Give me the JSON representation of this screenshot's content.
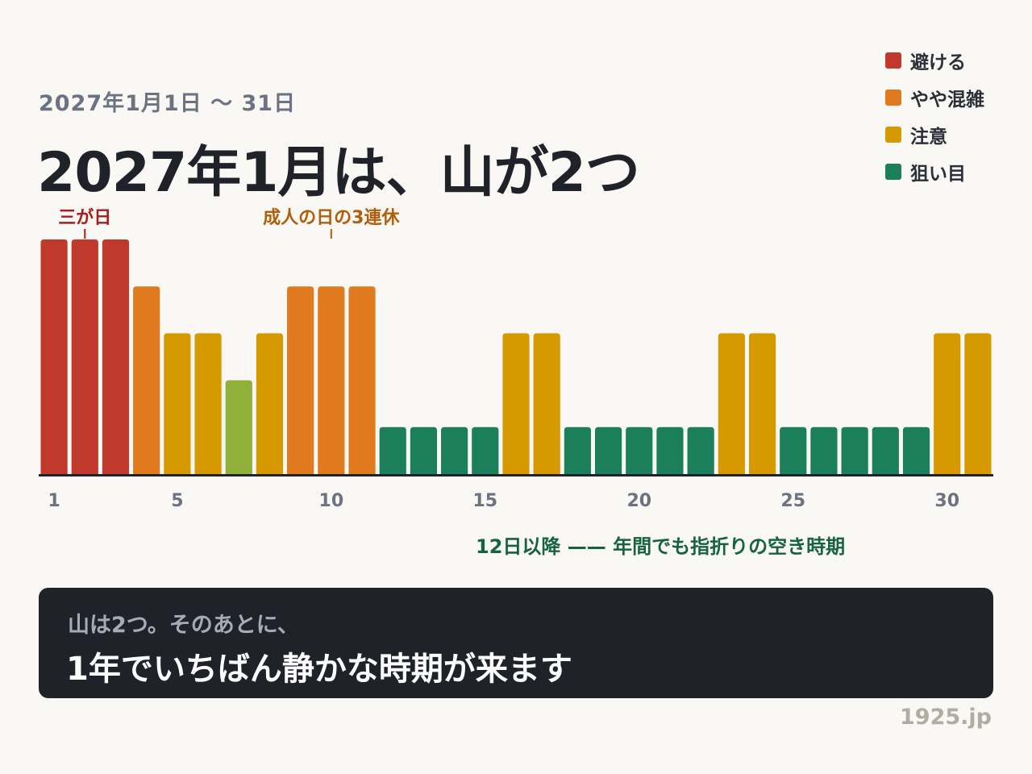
{
  "header": {
    "subtitle": "2027年1月1日 〜 31日",
    "title": "2027年1月は、山が2つ"
  },
  "legend": [
    {
      "label": "避ける",
      "color": "#c0392b"
    },
    {
      "label": "やや混雑",
      "color": "#e07a1f"
    },
    {
      "label": "注意",
      "color": "#d69a00"
    },
    {
      "label": "狙い目",
      "color": "#1a7f5a"
    }
  ],
  "chart_data": {
    "type": "bar",
    "x": [
      1,
      2,
      3,
      4,
      5,
      6,
      7,
      8,
      9,
      10,
      11,
      12,
      13,
      14,
      15,
      16,
      17,
      18,
      19,
      20,
      21,
      22,
      23,
      24,
      25,
      26,
      27,
      28,
      29,
      30,
      31
    ],
    "values": [
      5,
      5,
      5,
      4,
      3,
      3,
      2,
      3,
      4,
      4,
      4,
      1,
      1,
      1,
      1,
      3,
      3,
      1,
      1,
      1,
      1,
      1,
      3,
      3,
      1,
      1,
      1,
      1,
      1,
      3,
      3
    ],
    "levels": [
      "avoid",
      "avoid",
      "avoid",
      "busy",
      "caution",
      "caution",
      "mild",
      "caution",
      "busy",
      "busy",
      "busy",
      "target",
      "target",
      "target",
      "target",
      "caution",
      "caution",
      "target",
      "target",
      "target",
      "target",
      "target",
      "caution",
      "caution",
      "target",
      "target",
      "target",
      "target",
      "target",
      "caution",
      "caution"
    ],
    "level_colors": {
      "avoid": "#c0392b",
      "busy": "#e07a1f",
      "caution": "#d69a00",
      "mild": "#8fb03a",
      "target": "#1a7f5a"
    },
    "x_ticks": [
      1,
      5,
      10,
      15,
      20,
      25,
      30
    ],
    "ylim": [
      0,
      5
    ],
    "annotations": [
      {
        "text": "三が日",
        "x": 2,
        "color": "#a51d1d"
      },
      {
        "text": "成人の日の3連休",
        "x": 10,
        "color": "#b45c0a"
      }
    ],
    "xlabel": "",
    "ylabel": ""
  },
  "note": {
    "text": "12日以降 —— 年間でも指折りの空き時期",
    "color": "#17623f"
  },
  "callout": {
    "lead": "山は2つ。そのあとに、",
    "main": "1年でいちばん静かな時期が来ます"
  },
  "source": "1925.jp"
}
